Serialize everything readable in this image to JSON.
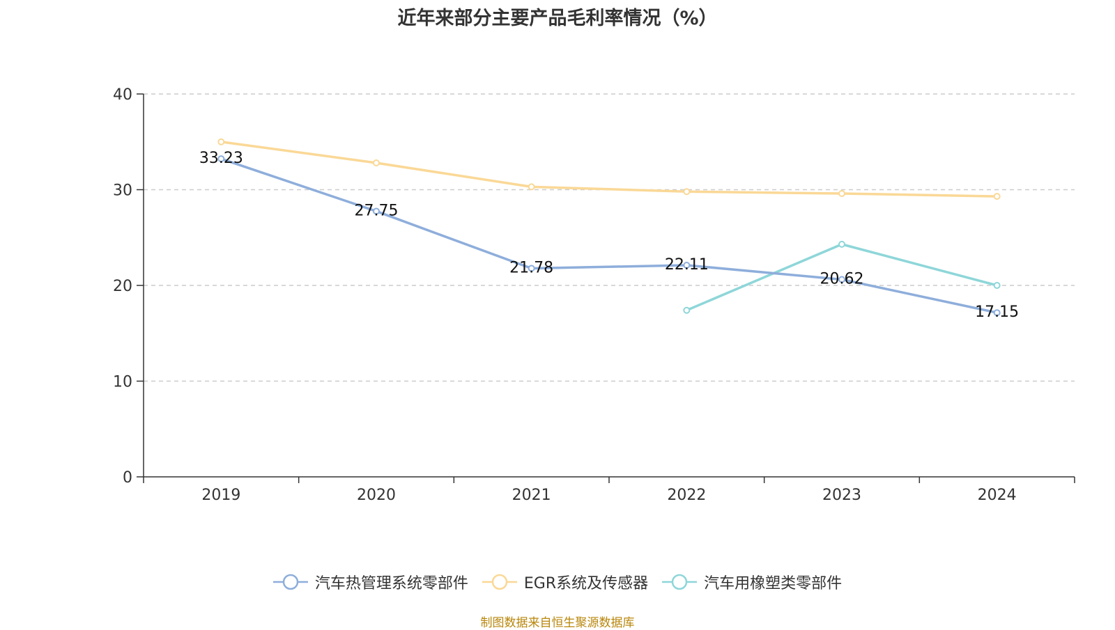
{
  "chart_data": {
    "type": "line",
    "title": "近年来部分主要产品毛利率情况（%）",
    "categories": [
      "2019",
      "2020",
      "2021",
      "2022",
      "2023",
      "2024"
    ],
    "ylim": [
      0,
      40
    ],
    "yticks": [
      0,
      10,
      20,
      30,
      40
    ],
    "grid": true,
    "legend_position": "bottom",
    "series": [
      {
        "name": "汽车热管理系统零部件",
        "color": "#8eaedb",
        "values": [
          33.23,
          27.75,
          21.78,
          22.11,
          20.62,
          17.15
        ],
        "labels": [
          "33.23",
          "27.75",
          "21.78",
          "22.11",
          "20.62",
          "17.15"
        ]
      },
      {
        "name": "EGR系统及传感器",
        "color": "#fad896",
        "values": [
          35.0,
          32.8,
          30.3,
          29.8,
          29.6,
          29.3
        ],
        "labels": null
      },
      {
        "name": "汽车用橡塑类零部件",
        "color": "#8ed6d9",
        "values": [
          null,
          null,
          null,
          17.4,
          24.3,
          20.0
        ],
        "labels": null
      }
    ]
  },
  "source_note": "制图数据来自恒生聚源数据库"
}
